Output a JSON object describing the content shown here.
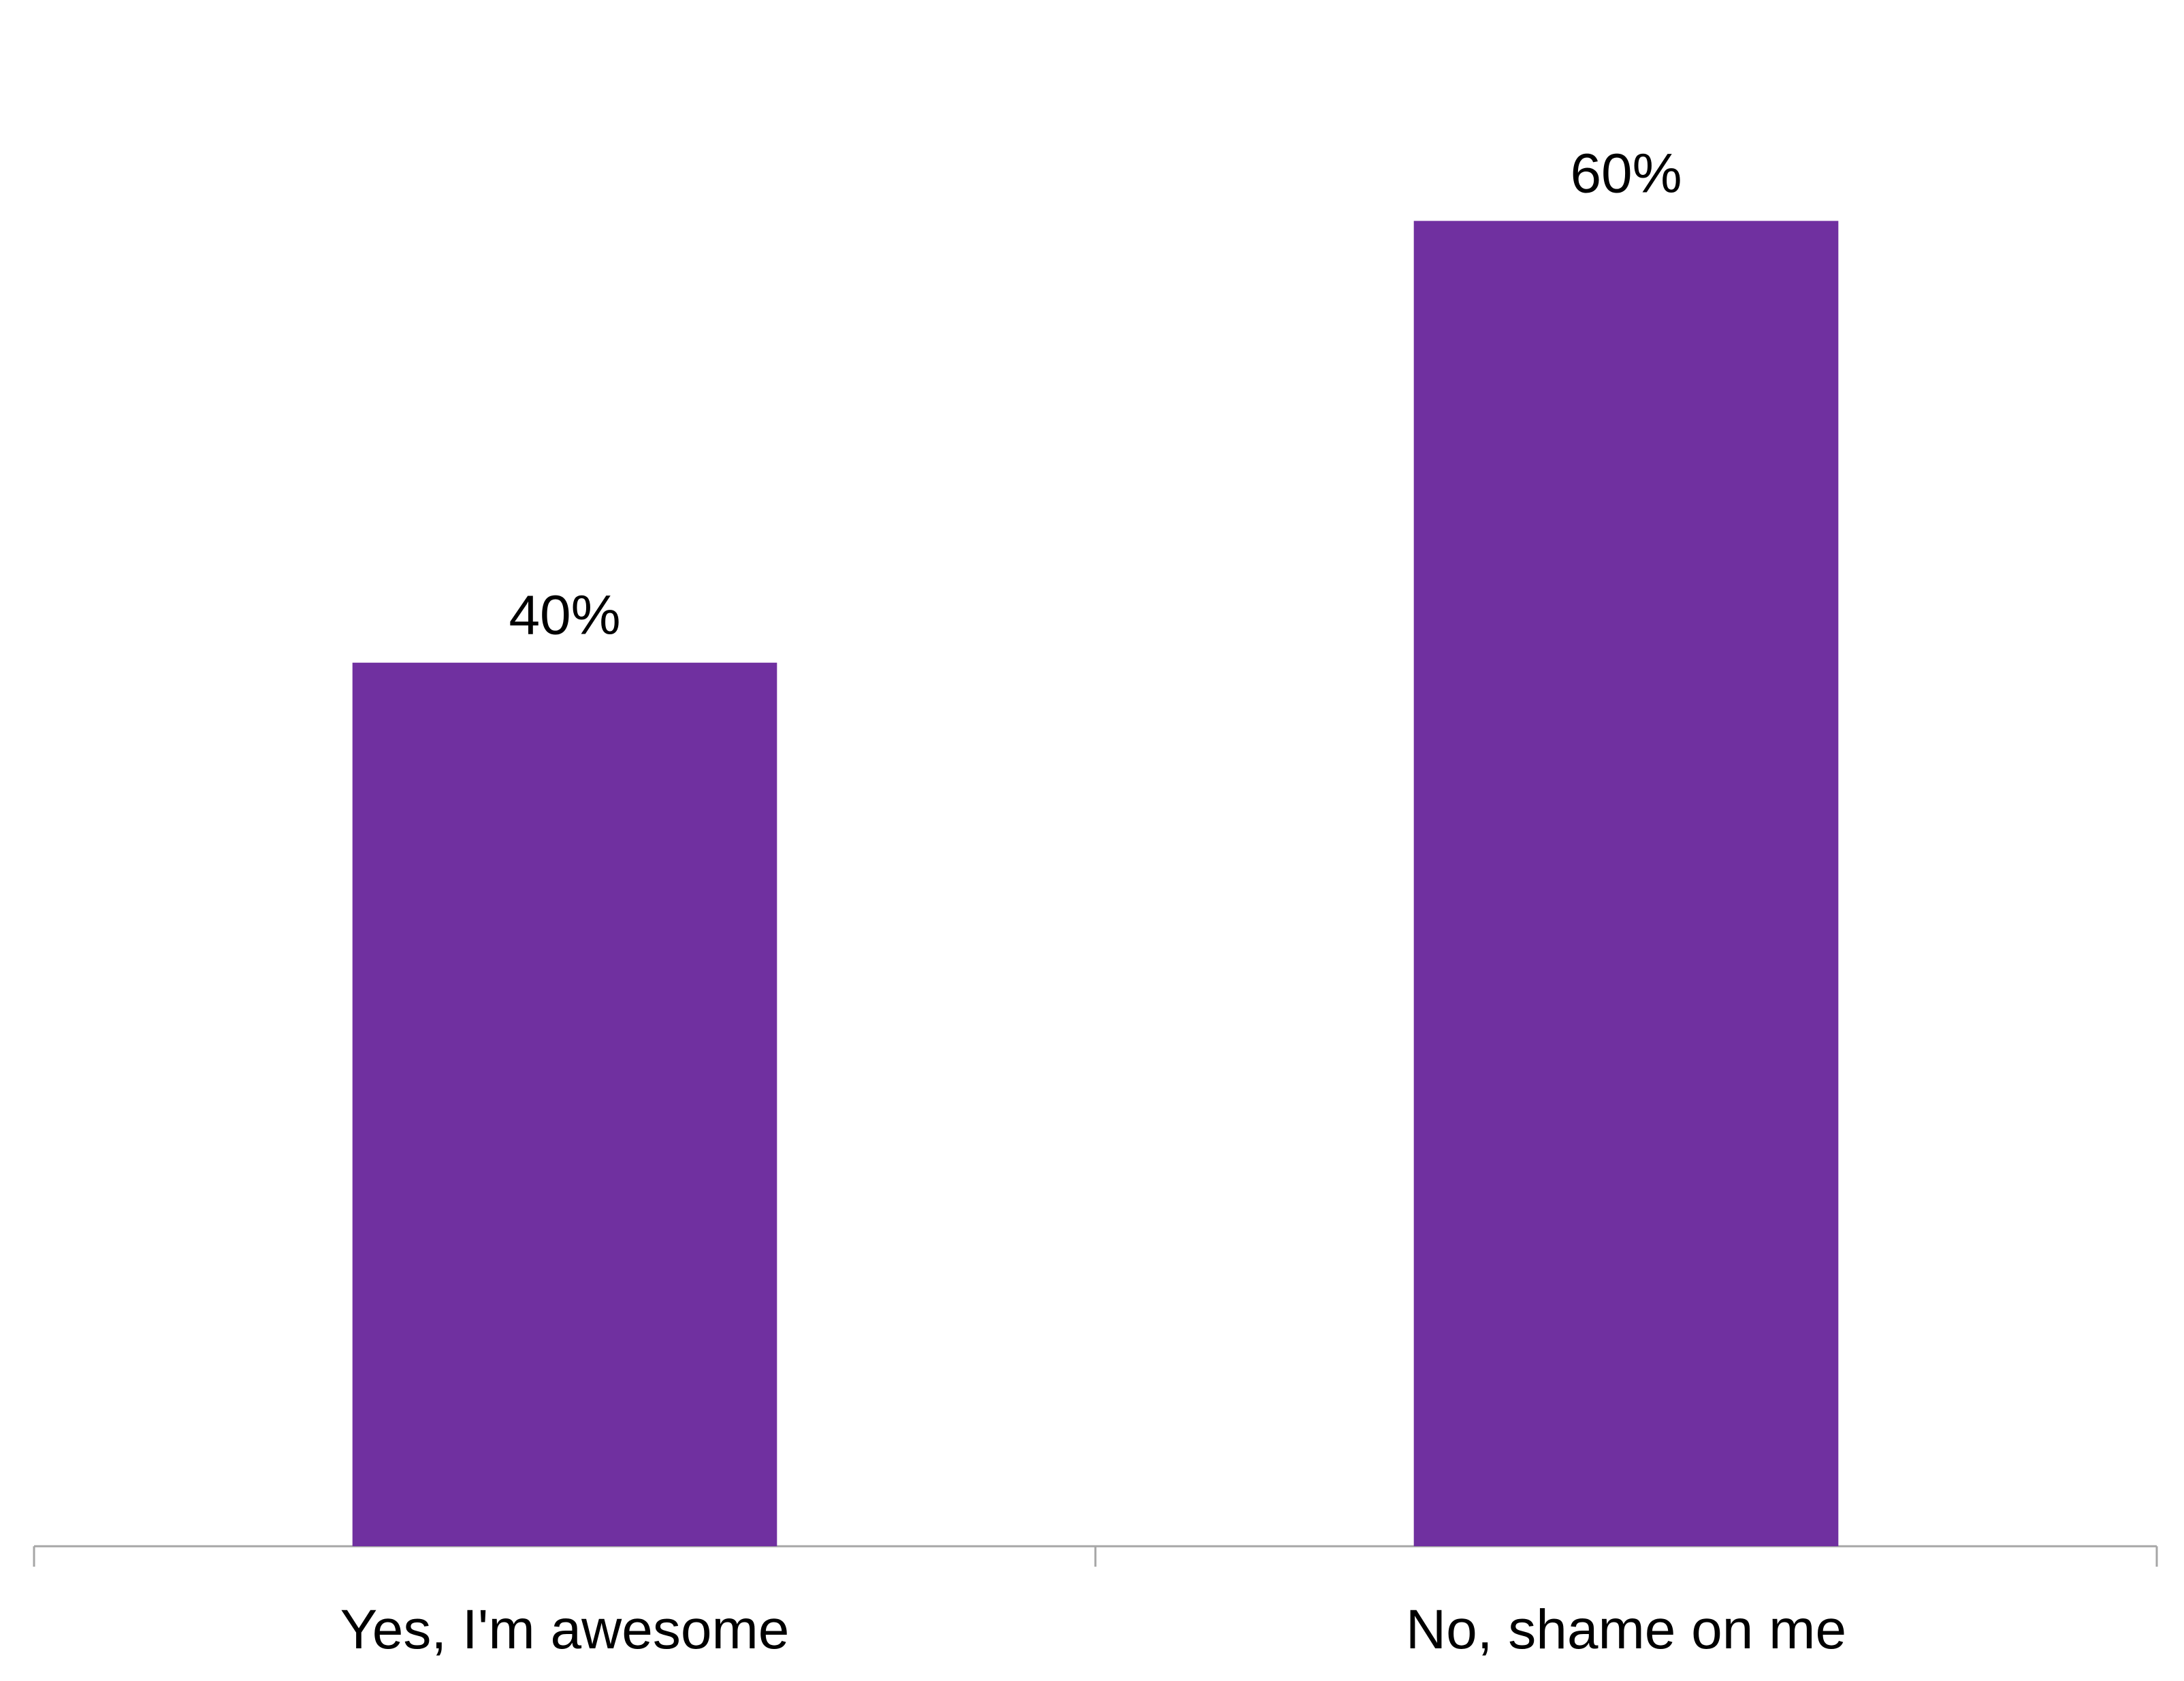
{
  "chart_data": {
    "type": "bar",
    "categories": [
      "Yes, I'm awesome",
      "No, shame on me"
    ],
    "values": [
      40,
      60
    ],
    "data_labels": [
      "40%",
      "60%"
    ],
    "ylim": [
      0,
      70
    ],
    "grid": false,
    "legend": "none",
    "colors": {
      "bar": "#7030a0",
      "axis": "#a6a6a6"
    }
  }
}
